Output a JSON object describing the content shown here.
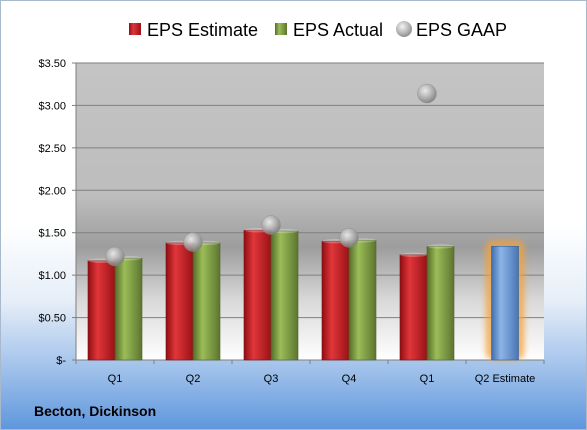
{
  "company": "Becton, Dickinson",
  "chart_data": {
    "type": "bar",
    "categories": [
      "Q1",
      "Q2",
      "Q3",
      "Q4",
      "Q1",
      "Q2 Estimate"
    ],
    "series": [
      {
        "name": "EPS Estimate",
        "values": [
          1.17,
          1.38,
          1.53,
          1.4,
          1.24,
          null
        ],
        "color": "#c0171b"
      },
      {
        "name": "EPS Actual",
        "values": [
          1.2,
          1.38,
          1.52,
          1.41,
          1.34,
          null
        ],
        "color": "#76953a"
      },
      {
        "name": "EPS GAAP",
        "type": "scatter",
        "values": [
          1.22,
          1.39,
          1.59,
          1.44,
          3.14,
          null
        ],
        "color": "#a6a6a6"
      }
    ],
    "highlight": {
      "category_index": 5,
      "value": 1.34,
      "color": "#5b8fd1",
      "glow": "#f4a23a"
    },
    "ylim": [
      0,
      3.5
    ],
    "yticks": [
      0,
      0.5,
      1.0,
      1.5,
      2.0,
      2.5,
      3.0,
      3.5
    ],
    "ytick_labels": [
      "$-",
      "$0.50",
      "$1.00",
      "$1.50",
      "$2.00",
      "$2.50",
      "$3.00",
      "$3.50"
    ],
    "legend_position": "top",
    "grid": true
  }
}
